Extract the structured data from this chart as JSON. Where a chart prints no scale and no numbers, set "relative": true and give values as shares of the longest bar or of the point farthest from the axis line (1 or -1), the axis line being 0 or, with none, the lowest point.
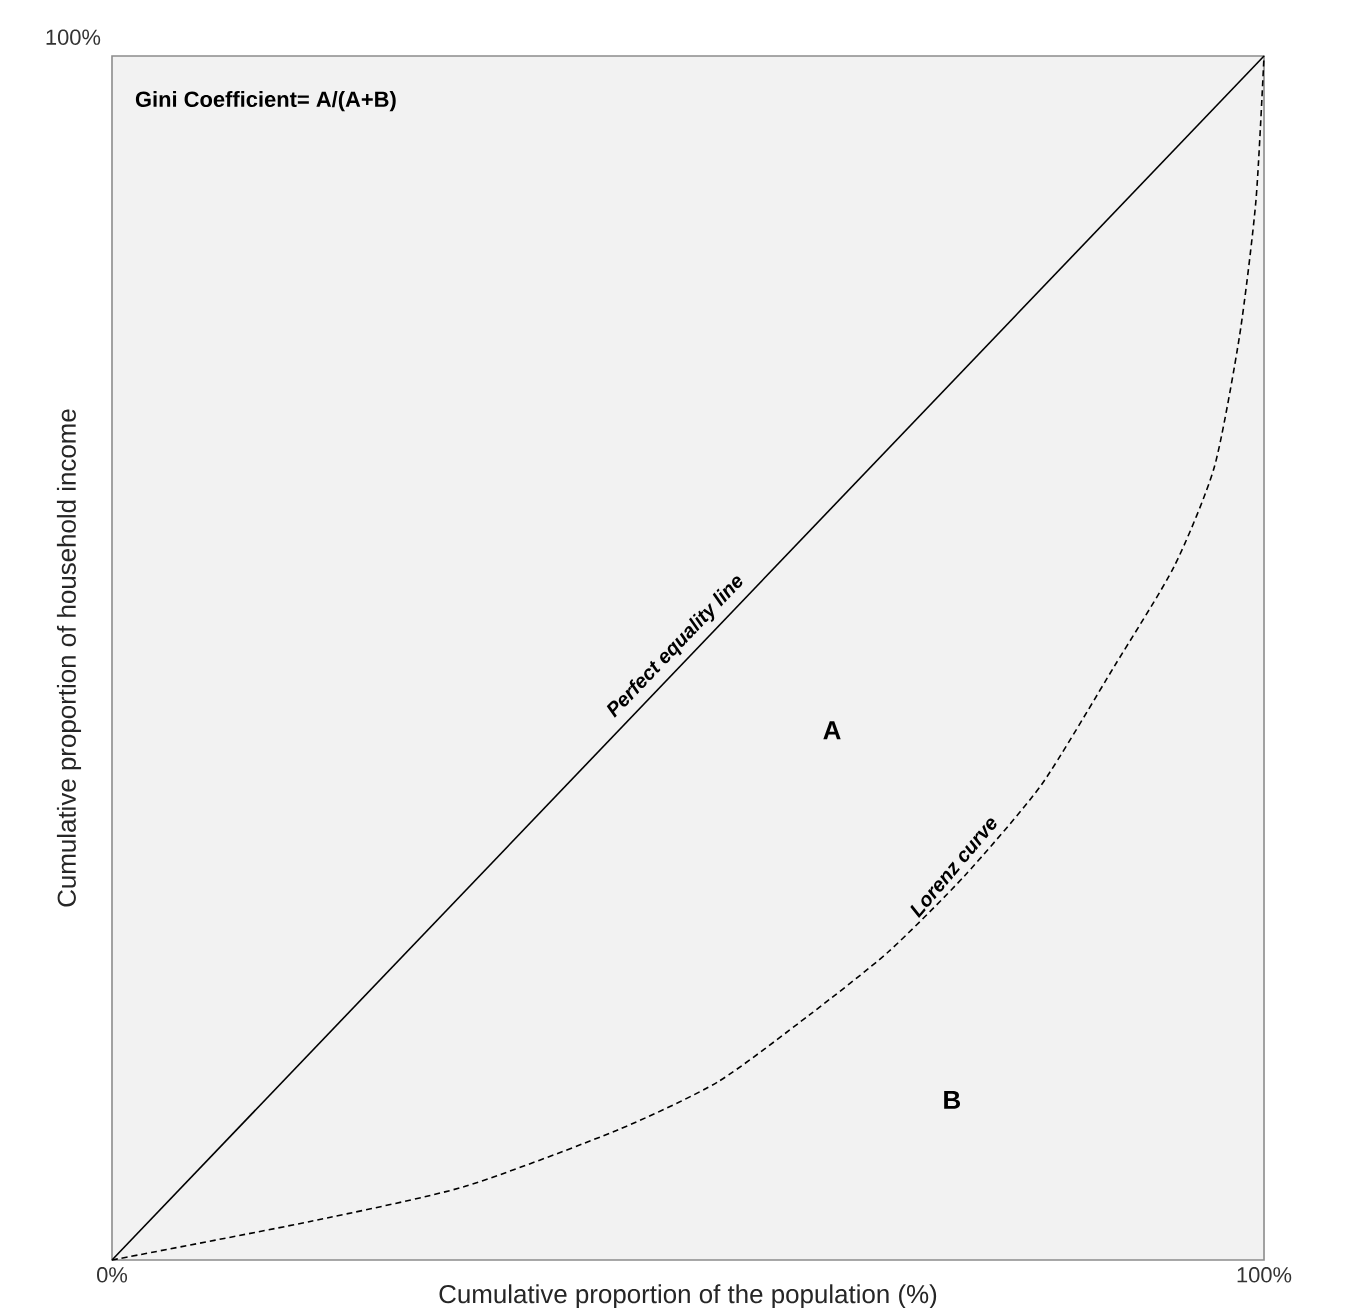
{
  "chart_data": {
    "type": "line",
    "xlabel": "Cumulative proportion of the population (%)",
    "ylabel": "Cumulative proportion of household income",
    "xlim": [
      0,
      100
    ],
    "xticks": [
      {
        "value": 0,
        "label": "0%"
      },
      {
        "value": 100,
        "label": "100%"
      }
    ],
    "relative": true,
    "marker": "none",
    "legend": false,
    "series": [
      {
        "name": "Perfect equality line",
        "color": "#000000",
        "line_style": "solid",
        "x": [
          0,
          100
        ],
        "values": [
          0,
          1
        ]
      },
      {
        "name": "Lorenz curve",
        "color": "#000000",
        "line_style": "dashed",
        "x": [
          0,
          17.2,
          30.6,
          43.9,
          52.6,
          60.6,
          67.4,
          74.0,
          80.7,
          87.0,
          92.2,
          95.7,
          97.9,
          99.3,
          100
        ],
        "values": [
          0,
          0.032,
          0.061,
          0.108,
          0.148,
          0.204,
          0.256,
          0.319,
          0.395,
          0.493,
          0.576,
          0.659,
          0.769,
          0.88,
          1
        ]
      }
    ],
    "annotations": [
      "100%",
      "Gini Coefficient= A/(A+B)",
      "A",
      "B"
    ]
  }
}
